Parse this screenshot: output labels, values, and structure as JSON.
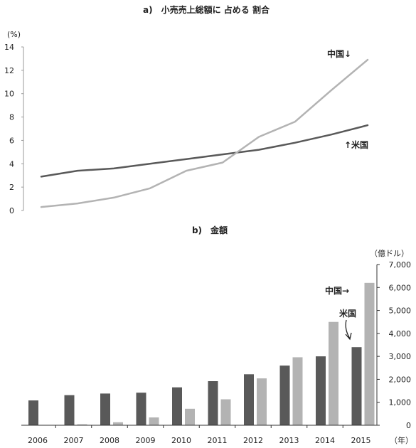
{
  "chart_data": [
    {
      "type": "line",
      "title": "a)　小売売上総額に 占める 割合",
      "unit_label": "(%)",
      "ylim": [
        0,
        14
      ],
      "y_ticks": [
        "0",
        "2",
        "4",
        "6",
        "8",
        "10",
        "12",
        "14"
      ],
      "x": [
        2006,
        2007,
        2008,
        2009,
        2010,
        2011,
        2012,
        2013,
        2014,
        2015
      ],
      "series": [
        {
          "name": "米国",
          "label": "↑米国",
          "color": "#595959",
          "values": [
            2.9,
            3.4,
            3.6,
            4.0,
            4.4,
            4.8,
            5.2,
            5.8,
            6.5,
            7.3
          ]
        },
        {
          "name": "中国",
          "label": "中国↓",
          "color": "#b3b3b3",
          "values": [
            0.3,
            0.6,
            1.1,
            1.9,
            3.4,
            4.1,
            6.3,
            7.6,
            10.3,
            12.9
          ]
        }
      ]
    },
    {
      "type": "bar",
      "title": "b)　金額",
      "unit_label": "（億ドル）",
      "x_unit_label": "（年）",
      "ylim": [
        0,
        7000
      ],
      "y_ticks": [
        "0",
        "1,000",
        "2,000",
        "3,000",
        "4,000",
        "5,000",
        "6,000",
        "7,000"
      ],
      "categories": [
        "2006",
        "2007",
        "2008",
        "2009",
        "2010",
        "2011",
        "2012",
        "2013",
        "2014",
        "2015"
      ],
      "series": [
        {
          "name": "米国",
          "label": "米国",
          "color": "#595959",
          "values": [
            1080,
            1310,
            1380,
            1420,
            1650,
            1920,
            2220,
            2600,
            3000,
            3400
          ]
        },
        {
          "name": "中国",
          "label": "中国→",
          "color": "#b3b3b3",
          "values": [
            0,
            40,
            130,
            340,
            720,
            1130,
            2040,
            2960,
            4500,
            6200
          ]
        }
      ]
    }
  ]
}
